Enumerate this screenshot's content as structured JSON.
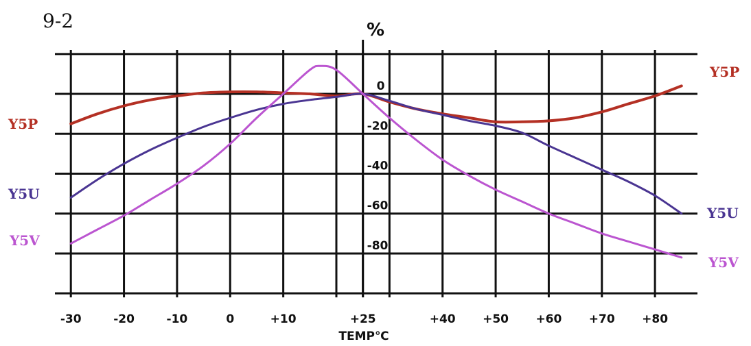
{
  "chart_data": {
    "type": "line",
    "figure_label": "9-2",
    "ylabel": "%",
    "xlabel": "TEMP℃",
    "grid": true,
    "xlim": [
      -33,
      88
    ],
    "ylim": [
      -102,
      22
    ],
    "x_ticks": [
      {
        "value": -30,
        "label": "-30"
      },
      {
        "value": -20,
        "label": "-20"
      },
      {
        "value": -10,
        "label": "-10"
      },
      {
        "value": 0,
        "label": "0"
      },
      {
        "value": 10,
        "label": "+10"
      },
      {
        "value": 25,
        "label": "+25"
      },
      {
        "value": 40,
        "label": "+40"
      },
      {
        "value": 50,
        "label": "+50"
      },
      {
        "value": 60,
        "label": "+60"
      },
      {
        "value": 70,
        "label": "+70"
      },
      {
        "value": 80,
        "label": "+80"
      }
    ],
    "x_gridlines": [
      -30,
      -20,
      -10,
      0,
      10,
      20,
      25,
      30,
      40,
      50,
      60,
      70,
      80
    ],
    "y_ticks": [
      {
        "value": 0,
        "label": "0"
      },
      {
        "value": -20,
        "label": "-20"
      },
      {
        "value": -40,
        "label": "-40"
      },
      {
        "value": -60,
        "label": "-60"
      },
      {
        "value": -80,
        "label": "-80"
      }
    ],
    "y_gridlines": [
      20,
      0,
      -20,
      -40,
      -60,
      -80,
      -100
    ],
    "series": [
      {
        "name": "Y5P",
        "color": "#b43024",
        "x": [
          -30,
          -25,
          -20,
          -15,
          -10,
          -5,
          0,
          5,
          10,
          15,
          20,
          25,
          30,
          35,
          40,
          45,
          50,
          55,
          60,
          65,
          70,
          75,
          80,
          85
        ],
        "y": [
          -15,
          -10,
          -6,
          -3,
          -1,
          0.5,
          1,
          1,
          0.5,
          0,
          -1,
          0,
          -4,
          -7.5,
          -10,
          -12,
          -14,
          -14,
          -13.5,
          -12,
          -9,
          -5,
          -1,
          4
        ]
      },
      {
        "name": "Y5U",
        "color": "#4a3592",
        "x": [
          -30,
          -25,
          -20,
          -15,
          -10,
          -5,
          0,
          5,
          10,
          15,
          20,
          25,
          30,
          35,
          40,
          45,
          50,
          55,
          60,
          65,
          70,
          75,
          80,
          85
        ],
        "y": [
          -52,
          -43,
          -35,
          -28,
          -22,
          -16.5,
          -12,
          -8,
          -5,
          -3,
          -1.5,
          0,
          -3.5,
          -7.5,
          -10.5,
          -13.5,
          -16,
          -19.5,
          -26,
          -32,
          -38,
          -44,
          -51,
          -60
        ]
      },
      {
        "name": "Y5V",
        "color": "#bb55d0",
        "x": [
          -30,
          -25,
          -20,
          -15,
          -10,
          -5,
          0,
          5,
          10,
          15,
          17,
          20,
          25,
          30,
          35,
          40,
          45,
          50,
          55,
          60,
          65,
          70,
          75,
          80,
          85
        ],
        "y": [
          -75,
          -68,
          -61,
          -53,
          -45,
          -36,
          -25,
          -12,
          0,
          12,
          14,
          12,
          0,
          -12,
          -23,
          -33,
          -41,
          -48,
          -54,
          -60,
          -65,
          -70,
          -74,
          -78,
          -82
        ]
      }
    ],
    "series_labels_left": [
      {
        "name": "Y5P",
        "label": "Y5P"
      },
      {
        "name": "Y5U",
        "label": "Y5U"
      },
      {
        "name": "Y5V",
        "label": "Y5V"
      }
    ],
    "series_labels_right": [
      {
        "name": "Y5P",
        "label": "Y5P"
      },
      {
        "name": "Y5U",
        "label": "Y5U"
      },
      {
        "name": "Y5V",
        "label": "Y5V"
      }
    ]
  }
}
